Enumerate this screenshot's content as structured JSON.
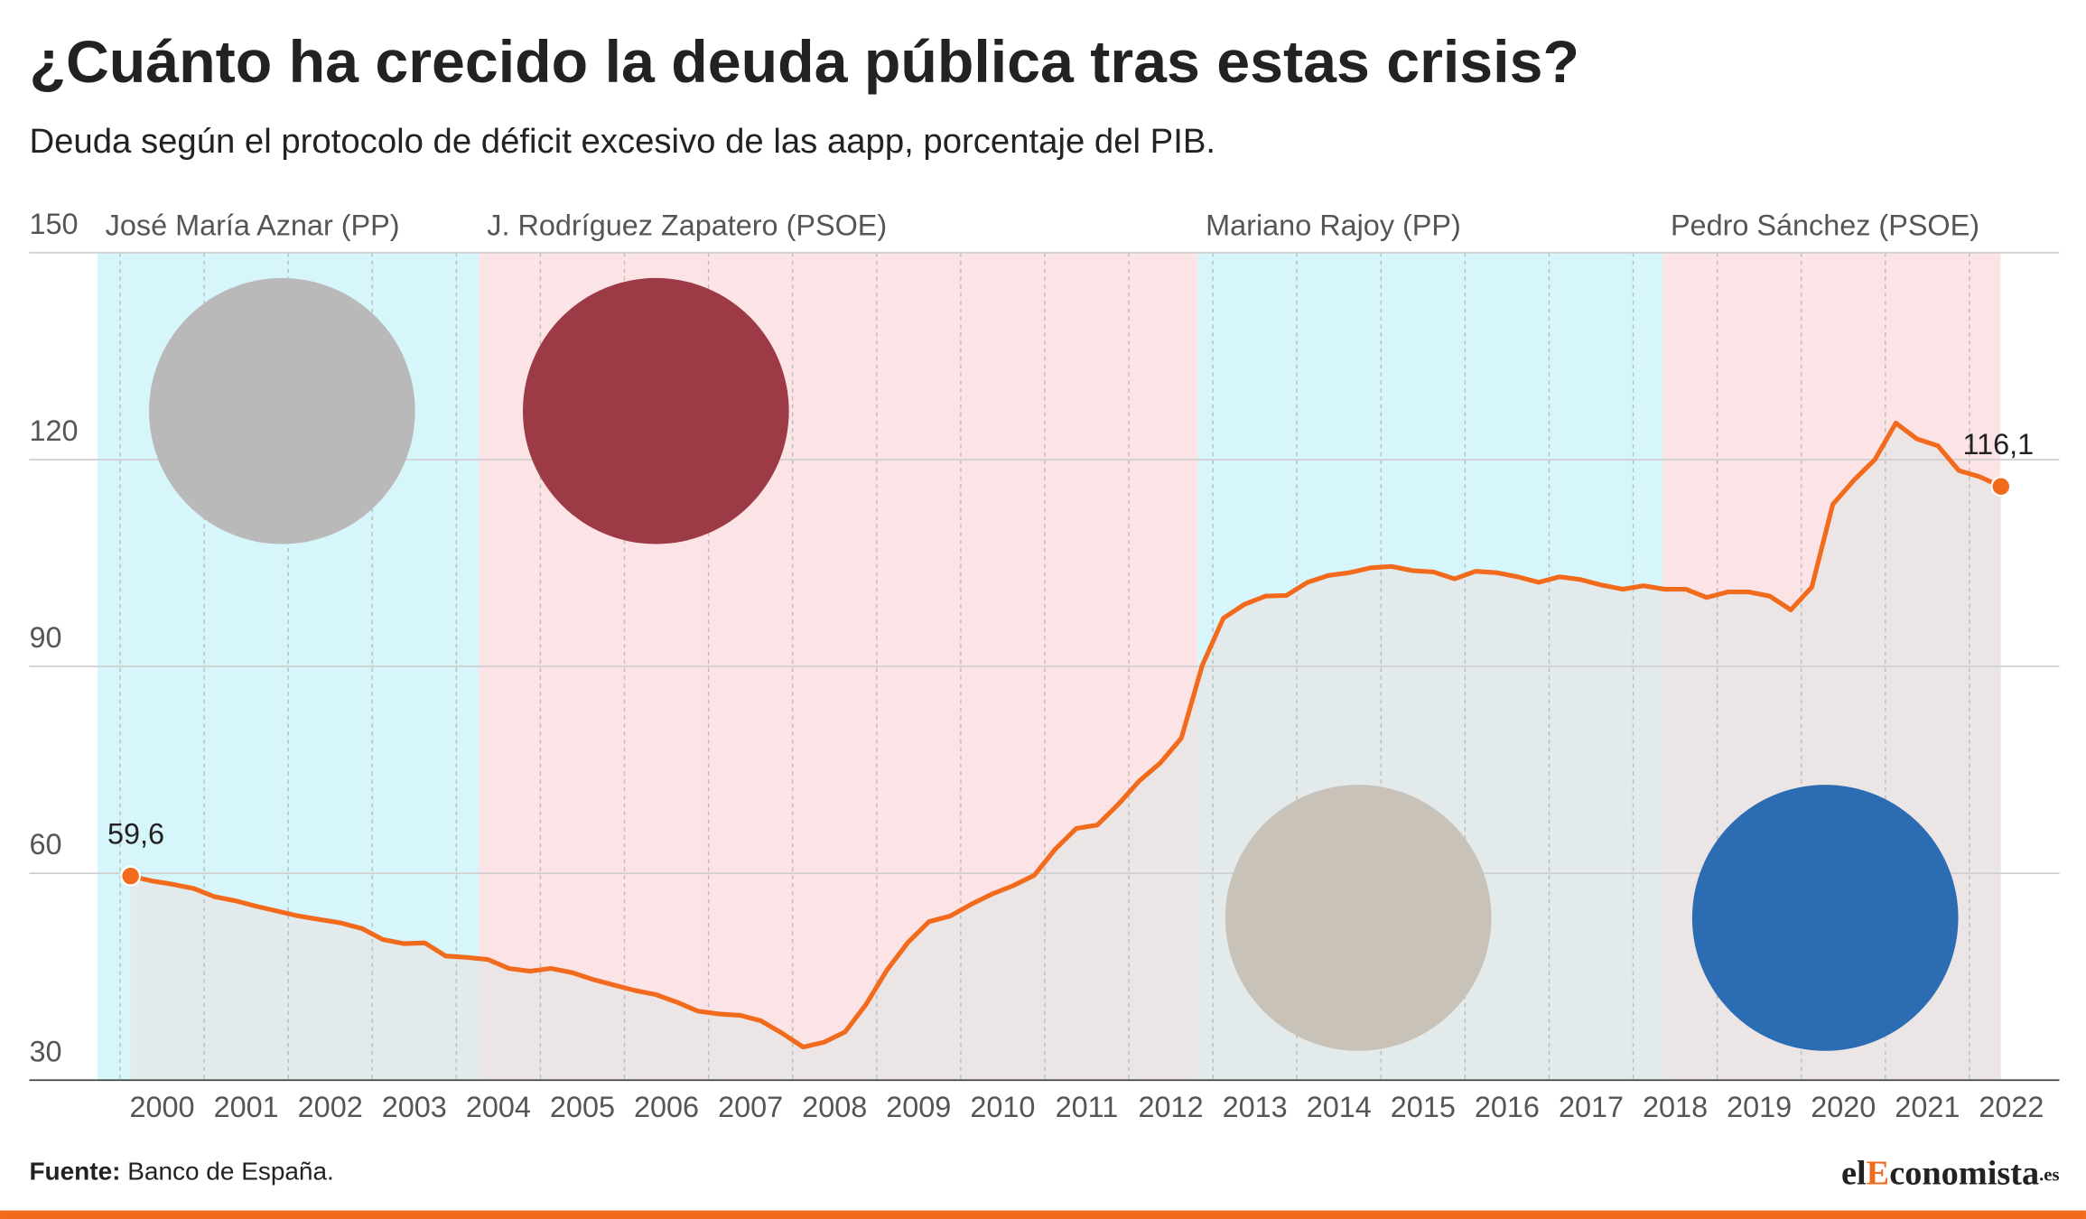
{
  "chart_data": {
    "type": "line",
    "title": "¿Cuánto ha crecido la deuda pública tras estas crisis?",
    "subtitle": "Deuda según el protocolo de déficit excesivo de las aapp, porcentaje del PIB.",
    "source_label": "Fuente:",
    "source": "Banco de España.",
    "logo": {
      "part1": "el",
      "part2": "E",
      "part3": "conomista",
      "part4": ".es"
    },
    "color": "#f26a1b",
    "grid": true,
    "ylim": [
      30,
      150
    ],
    "yticks": [
      30,
      60,
      90,
      120,
      150
    ],
    "xlim": [
      1998.92,
      2023.07
    ],
    "xticks": [
      2000,
      2001,
      2002,
      2003,
      2004,
      2005,
      2006,
      2007,
      2008,
      2009,
      2010,
      2011,
      2012,
      2013,
      2014,
      2015,
      2016,
      2017,
      2018,
      2019,
      2020,
      2021,
      2022
    ],
    "periods": [
      {
        "name": "José María Aznar (PP)",
        "start": 1999.73,
        "end": 2004.27,
        "color": "#d7f6fc"
      },
      {
        "name": "J. Rodríguez Zapatero (PSOE)",
        "start": 2004.27,
        "end": 2012.82,
        "color": "#fbe3e6"
      },
      {
        "name": "Mariano Rajoy (PP)",
        "start": 2012.82,
        "end": 2018.35,
        "color": "#d7f6fc"
      },
      {
        "name": "Pedro Sánchez (PSOE)",
        "start": 2018.35,
        "end": 2022.37,
        "color": "#fbe3e6"
      }
    ],
    "x": [
      2000.125,
      2000.375,
      2000.625,
      2000.875,
      2001.125,
      2001.375,
      2001.625,
      2001.875,
      2002.125,
      2002.375,
      2002.625,
      2002.875,
      2003.125,
      2003.375,
      2003.625,
      2003.875,
      2004.125,
      2004.375,
      2004.625,
      2004.875,
      2005.125,
      2005.375,
      2005.625,
      2005.875,
      2006.125,
      2006.375,
      2006.625,
      2006.875,
      2007.125,
      2007.375,
      2007.625,
      2007.875,
      2008.125,
      2008.375,
      2008.625,
      2008.875,
      2009.125,
      2009.375,
      2009.625,
      2009.875,
      2010.125,
      2010.375,
      2010.625,
      2010.875,
      2011.125,
      2011.375,
      2011.625,
      2011.875,
      2012.125,
      2012.375,
      2012.625,
      2012.875,
      2013.125,
      2013.375,
      2013.625,
      2013.875,
      2014.125,
      2014.375,
      2014.625,
      2014.875,
      2015.125,
      2015.375,
      2015.625,
      2015.875,
      2016.125,
      2016.375,
      2016.625,
      2016.875,
      2017.125,
      2017.375,
      2017.625,
      2017.875,
      2018.125,
      2018.375,
      2018.625,
      2018.875,
      2019.125,
      2019.375,
      2019.625,
      2019.875,
      2020.125,
      2020.375,
      2020.625,
      2020.875,
      2021.125,
      2021.375,
      2021.625,
      2021.875,
      2022.125,
      2022.375
    ],
    "values": [
      59.6,
      58.9,
      58.4,
      57.8,
      56.6,
      56.0,
      55.2,
      54.5,
      53.8,
      53.3,
      52.8,
      52.0,
      50.4,
      49.8,
      49.9,
      48.0,
      47.8,
      47.5,
      46.2,
      45.8,
      46.2,
      45.6,
      44.6,
      43.8,
      43.0,
      42.4,
      41.3,
      40.0,
      39.6,
      39.4,
      38.6,
      36.8,
      34.8,
      35.5,
      37.0,
      41.0,
      46.0,
      50.0,
      53.0,
      53.8,
      55.5,
      57.0,
      58.2,
      59.7,
      63.5,
      66.5,
      67.0,
      70.0,
      73.4,
      76.0,
      79.6,
      90.2,
      97.0,
      99.0,
      100.2,
      100.3,
      102.2,
      103.2,
      103.6,
      104.3,
      104.5,
      103.9,
      103.7,
      102.7,
      103.8,
      103.6,
      103.0,
      102.2,
      103.0,
      102.6,
      101.8,
      101.2,
      101.7,
      101.2,
      101.2,
      100.0,
      100.8,
      100.8,
      100.2,
      98.2,
      101.5,
      113.5,
      117.0,
      120.0,
      125.3,
      123.0,
      122.0,
      118.4,
      117.5,
      116.1
    ],
    "point_labels": [
      {
        "index": 0,
        "label": "59,6"
      },
      {
        "index": 89,
        "label": "116,1"
      }
    ]
  }
}
